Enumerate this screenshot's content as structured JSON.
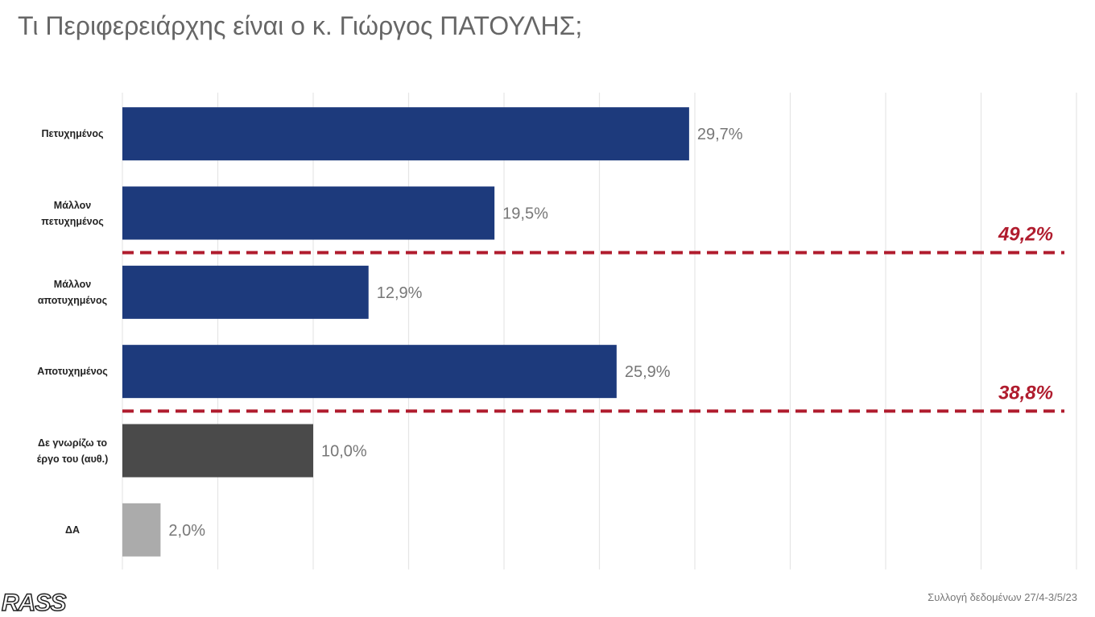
{
  "chart_data": {
    "type": "hbar",
    "title": "Τι Περιφερειάρχης είναι ο κ. Γιώργος ΠΑΤΟΥΛΗΣ;",
    "categories": [
      "Πετυχημένος",
      "Μάλλον πετυχημένος",
      "Μάλλον αποτυχημένος",
      "Αποτυχημένος",
      "Δε γνωρίζω το έργο του (αυθ.)",
      "ΔΑ"
    ],
    "values": [
      29.7,
      19.5,
      12.9,
      25.9,
      10.0,
      2.0
    ],
    "value_labels": [
      "29,7%",
      "19,5%",
      "12,9%",
      "25,9%",
      "10,0%",
      "2,0%"
    ],
    "colors": [
      "#1d3a7c",
      "#1d3a7c",
      "#1d3a7c",
      "#1d3a7c",
      "#4a4a4a",
      "#ababab"
    ],
    "xlim": [
      0,
      50
    ],
    "xticks": [
      0,
      5,
      10,
      15,
      20,
      25,
      30,
      35,
      40,
      45,
      50
    ],
    "grid": true,
    "annotations": [
      "49,2%",
      "38,8%"
    ],
    "source": "Συλλογή δεδομένων 27/4-3/5/23",
    "logo": "RASS"
  }
}
